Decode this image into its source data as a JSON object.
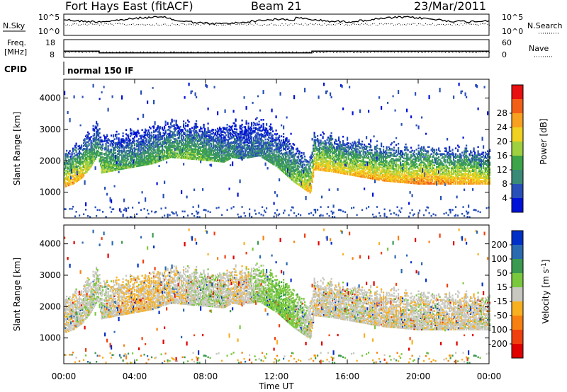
{
  "header": {
    "station": "Fort Hays East (fitACF)",
    "beam": "Beam 21",
    "date": "23/Mar/2011"
  },
  "sky_panel": {
    "left_label": "N.Sky",
    "right_label": "N.Search",
    "left_ticks": [
      "10^5",
      "10^0"
    ],
    "right_ticks": [
      "10^5",
      "10^0"
    ]
  },
  "freq_panel": {
    "left_label_line1": "Freq.",
    "left_label_line2": "[MHz]",
    "right_label": "Nave",
    "left_ticks": [
      "18",
      "8"
    ],
    "right_ticks": [
      "60",
      "0"
    ],
    "freq_step": {
      "high_mhz": 11.5,
      "low_mhz": 10.5,
      "low_from": "02:00",
      "low_to": "14:00"
    }
  },
  "cpid": {
    "label": "CPID",
    "value": "normal 150 IF"
  },
  "x_axis": {
    "label": "Time UT",
    "ticks": [
      "00:00",
      "04:00",
      "08:00",
      "12:00",
      "16:00",
      "20:00",
      "00:00"
    ]
  },
  "chart_data": [
    {
      "type": "heatmap",
      "title": "",
      "ylabel": "Slant Range [km]",
      "xlabel": "Time UT",
      "ylim": [
        180,
        4600
      ],
      "yticks": [
        1000,
        2000,
        3000,
        4000
      ],
      "colorbar": {
        "label": "Power [dB]",
        "ticks": [
          "4",
          "8",
          "12",
          "16",
          "20",
          "24",
          "28"
        ],
        "colors": [
          "#0012d8",
          "#2850b8",
          "#3a8a78",
          "#3ea44a",
          "#9ed040",
          "#f0d020",
          "#f8a020",
          "#f26018",
          "#e81010"
        ]
      },
      "series": [
        {
          "x": [
            0,
            0.5,
            1,
            1.5,
            1.9,
            2.1,
            3,
            4,
            5,
            6,
            7,
            8,
            9,
            9.5,
            10,
            11,
            12,
            13,
            13.9,
            14.1,
            15,
            16,
            17,
            18,
            19,
            20,
            21,
            22,
            23,
            24
          ],
          "center_km": [
            1450,
            1550,
            1750,
            2100,
            2500,
            1900,
            2000,
            2100,
            2200,
            2400,
            2350,
            2300,
            2250,
            2400,
            2350,
            2450,
            2100,
            1600,
            1250,
            2000,
            1950,
            1850,
            1750,
            1650,
            1600,
            1550,
            1550,
            1550,
            1550,
            1550
          ],
          "power_db": [
            26,
            26,
            24,
            18,
            14,
            20,
            16,
            14,
            16,
            16,
            18,
            16,
            14,
            12,
            10,
            10,
            14,
            18,
            26,
            26,
            24,
            24,
            26,
            26,
            26,
            28,
            28,
            26,
            26,
            24
          ]
        }
      ]
    },
    {
      "type": "heatmap",
      "title": "",
      "ylabel": "Slant Range [km]",
      "xlabel": "Time UT",
      "ylim": [
        180,
        4600
      ],
      "yticks": [
        1000,
        2000,
        3000,
        4000
      ],
      "colorbar": {
        "label": "Velocity [m s^-1]",
        "ticks": [
          "200",
          "100",
          "50",
          "15",
          "-15",
          "-50",
          "-100",
          "-200"
        ],
        "colors": [
          "#0030c8",
          "#2a6ab0",
          "#3a9a50",
          "#7ac83e",
          "#c8c8c0",
          "#f8b020",
          "#f88010",
          "#f04010",
          "#e00000"
        ]
      },
      "series": [
        {
          "x": [
            0,
            2,
            4,
            6,
            8,
            10,
            11,
            12,
            13,
            14,
            16,
            18,
            20,
            22,
            24
          ],
          "velocity_ms": [
            -5,
            5,
            -20,
            -10,
            10,
            -10,
            20,
            40,
            30,
            -5,
            0,
            -5,
            0,
            -5,
            0
          ]
        }
      ]
    }
  ]
}
